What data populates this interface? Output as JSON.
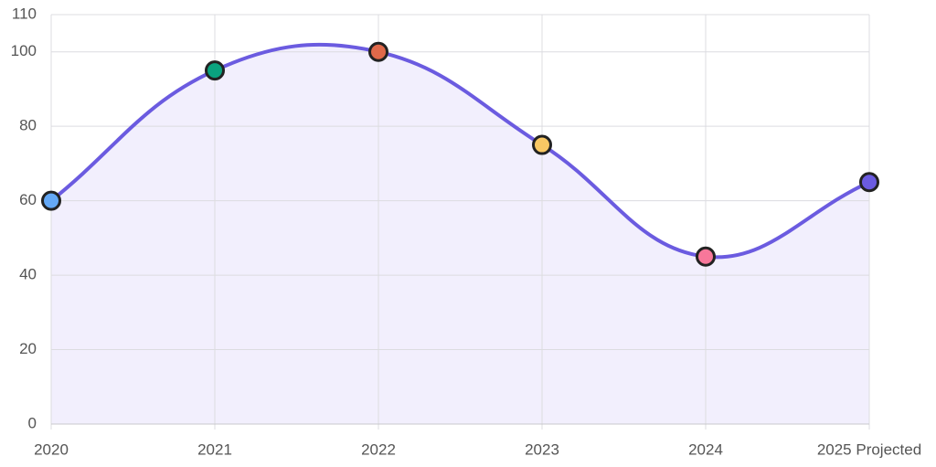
{
  "chart_data": {
    "type": "line",
    "categories": [
      "2020",
      "2021",
      "2022",
      "2023",
      "2024",
      "2025 Projected"
    ],
    "series": [
      {
        "color": "#6b5be0",
        "values": [
          60,
          95,
          100,
          75,
          45,
          65
        ]
      }
    ],
    "point_colors": [
      "#64a8f5",
      "#0aa37f",
      "#e0694a",
      "#f9c864",
      "#f7779a",
      "#6b5be0"
    ],
    "area_fill": "#f2effd",
    "ylim": [
      0,
      110
    ],
    "yticks": [
      0,
      20,
      40,
      60,
      80,
      100,
      110
    ],
    "grid": true
  }
}
